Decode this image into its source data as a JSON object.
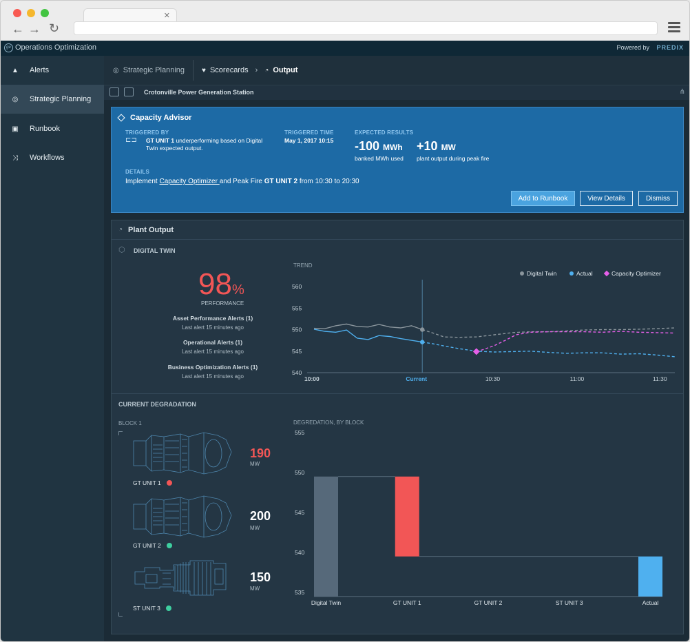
{
  "app": {
    "title": "Operations Optimization",
    "powered_by": "Powered by",
    "brand": "PREDIX"
  },
  "sidebar": {
    "items": [
      {
        "label": "Alerts",
        "icon": "warning-icon"
      },
      {
        "label": "Strategic Planning",
        "icon": "target-icon"
      },
      {
        "label": "Runbook",
        "icon": "book-icon"
      },
      {
        "label": "Workflows",
        "icon": "shuffle-icon"
      }
    ]
  },
  "breadcrumb": {
    "items": [
      {
        "label": "Strategic Planning",
        "icon": "target-icon"
      },
      {
        "label": "Scorecards",
        "icon": "heart-icon"
      },
      {
        "label": "Output",
        "icon": "gauge-icon"
      }
    ]
  },
  "toolbar": {
    "station": "Crotonville Power Generation Station"
  },
  "advisor": {
    "title": "Capacity Advisor",
    "triggered_by_label": "TRIGGERED BY",
    "triggered_by_unit": "GT UNIT 1",
    "triggered_by_text": " underperforming based on Digital",
    "triggered_by_text2": "Twin expected output.",
    "triggered_time_label": "TRIGGERED TIME",
    "triggered_time": "May 1, 2017 10:15",
    "expected_label": "EXPECTED RESULTS",
    "result1_value": "-100",
    "result1_unit": "MWh",
    "result1_desc": "banked MWh used",
    "result2_value": "+10",
    "result2_unit": "MW",
    "result2_desc": "plant output during peak fire",
    "details_label": "DETAILS",
    "details_pre": "Implement ",
    "details_link": "Capacity Optimizer ",
    "details_mid": "and Peak Fire ",
    "details_unit": "GT UNIT 2",
    "details_post": " from 10:30 to 20:30",
    "buttons": {
      "add": "Add to Runbook",
      "view": "View Details",
      "dismiss": "Dismiss"
    }
  },
  "plant_output": {
    "title": "Plant Output",
    "digital_twin_label": "DIGITAL TWIN",
    "performance_value": "98",
    "performance_unit": "%",
    "performance_label": "PERFORMANCE",
    "alerts": [
      {
        "title": "Asset Performance Alerts (1)",
        "sub": "Last alert 15 minutes ago"
      },
      {
        "title": "Operational Alerts (1)",
        "sub": "Last alert 15 minutes ago"
      },
      {
        "title": "Business Optimization Alerts (1)",
        "sub": "Last alert 15 minutes ago"
      }
    ],
    "current_degradation_label": "CURRENT DEGRADATION",
    "block_label": "BLOCK 1",
    "units": [
      {
        "name": "GT UNIT 1",
        "value": "190",
        "unit": "MW",
        "status_color": "#f25656"
      },
      {
        "name": "GT UNIT 2",
        "value": "200",
        "unit": "MW",
        "status_color": "#3ecfa0"
      },
      {
        "name": "ST UNIT 3",
        "value": "150",
        "unit": "MW",
        "status_color": "#3ecfa0"
      }
    ]
  },
  "chart_data": [
    {
      "type": "line",
      "title": "TREND",
      "legend": [
        "Digital Twin",
        "Actual",
        "Capacity Optimizer"
      ],
      "legend_position": "top-right",
      "colors": {
        "Digital Twin": "#8a959c",
        "Actual": "#4fb0ef",
        "Capacity Optimizer": "#e55fe8"
      },
      "yticks": [
        560,
        555,
        550,
        545,
        540
      ],
      "ylim": [
        540,
        560
      ],
      "xticks": [
        "10:00",
        "Current",
        "10:30",
        "11:00",
        "11:30"
      ],
      "series": [
        {
          "name": "Digital Twin",
          "x": [
            0,
            3,
            6,
            9,
            12,
            15,
            18,
            21,
            24,
            27,
            30,
            33,
            36,
            40,
            45,
            50,
            55,
            60,
            65,
            70,
            75,
            80,
            85,
            90,
            95,
            100
          ],
          "y": [
            550.3,
            550.2,
            550.9,
            551.3,
            550.7,
            550.6,
            551.2,
            550.6,
            550.4,
            550.9,
            550.0,
            549.2,
            548.3,
            548.2,
            548.3,
            548.8,
            549.3,
            549.5,
            549.5,
            549.7,
            549.9,
            550.0,
            550.0,
            550.1,
            550.2,
            550.4
          ]
        },
        {
          "name": "Actual",
          "x": [
            0,
            3,
            6,
            9,
            12,
            15,
            18,
            21,
            24,
            27,
            30,
            33,
            36,
            40,
            45,
            50,
            55,
            60,
            65,
            70,
            75,
            80,
            85,
            90,
            95,
            100
          ],
          "y": [
            550.1,
            549.6,
            549.4,
            549.9,
            548.0,
            547.7,
            548.6,
            548.4,
            547.9,
            547.5,
            547.1,
            546.7,
            546.2,
            545.6,
            545.0,
            544.8,
            544.9,
            545.0,
            544.7,
            544.5,
            544.6,
            544.6,
            544.3,
            544.4,
            544.1,
            543.7
          ]
        },
        {
          "name": "Capacity Optimizer",
          "x": [
            45,
            47,
            50,
            53,
            56,
            60,
            65,
            70,
            75,
            80,
            85,
            90,
            95,
            100
          ],
          "y": [
            544.9,
            545.4,
            546.3,
            547.5,
            548.8,
            549.4,
            549.5,
            549.5,
            549.5,
            549.4,
            549.6,
            549.4,
            549.3,
            549.2
          ]
        }
      ],
      "current_x": 30
    },
    {
      "type": "bar",
      "title": "DEGREDATION, BY BLOCK",
      "categories": [
        "Digital Twin",
        "GT UNIT 1",
        "GT UNIT 2",
        "ST UNIT 3",
        "Actual"
      ],
      "yticks": [
        555,
        550,
        545,
        540,
        535
      ],
      "ylim": [
        535,
        555
      ],
      "bars": [
        {
          "category": "Digital Twin",
          "from": 535,
          "to": 549.5,
          "color": "#56697a"
        },
        {
          "category": "GT UNIT 1",
          "from": 539.5,
          "to": 549.5,
          "color": "#f25656"
        },
        {
          "category": "GT UNIT 2",
          "from": 539.5,
          "to": 539.5,
          "color": "#56697a"
        },
        {
          "category": "ST UNIT 3",
          "from": 539.5,
          "to": 539.5,
          "color": "#56697a"
        },
        {
          "category": "Actual",
          "from": 535,
          "to": 539.5,
          "color": "#4fb0ef"
        }
      ]
    }
  ]
}
